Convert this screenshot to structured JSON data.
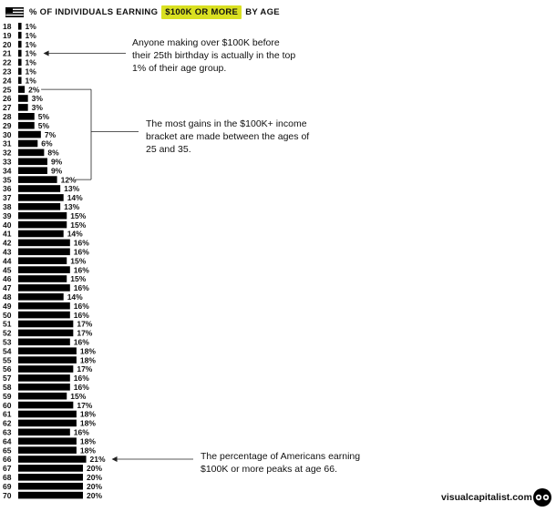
{
  "header": {
    "prefix": "% OF INDIVIDUALS EARNING",
    "highlight": "$100K OR MORE",
    "suffix": "BY AGE"
  },
  "colors": {
    "bar": "#000000",
    "highlight": "#d9e021",
    "text": "#111111"
  },
  "chart_data": {
    "type": "bar",
    "orientation": "horizontal",
    "title": "% OF INDIVIDUALS EARNING $100K OR MORE BY AGE",
    "categories": [
      "18",
      "19",
      "20",
      "21",
      "22",
      "23",
      "24",
      "25",
      "26",
      "27",
      "28",
      "29",
      "30",
      "31",
      "32",
      "33",
      "34",
      "35",
      "36",
      "37",
      "38",
      "39",
      "40",
      "41",
      "42",
      "43",
      "44",
      "45",
      "46",
      "47",
      "48",
      "49",
      "50",
      "51",
      "52",
      "53",
      "54",
      "55",
      "56",
      "57",
      "58",
      "59",
      "60",
      "61",
      "62",
      "63",
      "64",
      "65",
      "66",
      "67",
      "68",
      "69",
      "70"
    ],
    "values": [
      1,
      1,
      1,
      1,
      1,
      1,
      1,
      2,
      3,
      3,
      5,
      5,
      7,
      6,
      8,
      9,
      9,
      12,
      13,
      14,
      13,
      15,
      15,
      14,
      16,
      16,
      15,
      16,
      15,
      16,
      14,
      16,
      16,
      17,
      17,
      16,
      18,
      18,
      17,
      16,
      16,
      15,
      17,
      18,
      18,
      16,
      18,
      18,
      21,
      20,
      20,
      20,
      20
    ],
    "value_labels": [
      "1%",
      "1%",
      "1%",
      "1%",
      "1%",
      "1%",
      "1%",
      "2%",
      "3%",
      "3%",
      "5%",
      "5%",
      "7%",
      "6%",
      "8%",
      "9%",
      "9%",
      "12%",
      "13%",
      "14%",
      "13%",
      "15%",
      "15%",
      "14%",
      "16%",
      "16%",
      "15%",
      "16%",
      "15%",
      "16%",
      "14%",
      "16%",
      "16%",
      "17%",
      "17%",
      "16%",
      "18%",
      "18%",
      "17%",
      "16%",
      "16%",
      "15%",
      "17%",
      "18%",
      "18%",
      "16%",
      "18%",
      "18%",
      "21%",
      "20%",
      "20%",
      "20%",
      "20%"
    ],
    "unit": "%",
    "grid": false,
    "legend": "none"
  },
  "annotations": [
    {
      "id": "before-25",
      "target_age": "21",
      "text": "Anyone making over $100K before their 25th birthday is actually in the top 1% of their age group."
    },
    {
      "id": "gains-25-35",
      "range": [
        "25",
        "35"
      ],
      "text": "The most gains in the $100K+ income bracket are made between the ages of 25 and 35."
    },
    {
      "id": "peak-66",
      "target_age": "66",
      "text": "The percentage of Americans earning $100K or more peaks at age 66."
    }
  ],
  "credit": "visualcapitalist.com",
  "icons": {
    "flag": "us-flag-icon",
    "logo": "visual-capitalist-logo-icon"
  }
}
